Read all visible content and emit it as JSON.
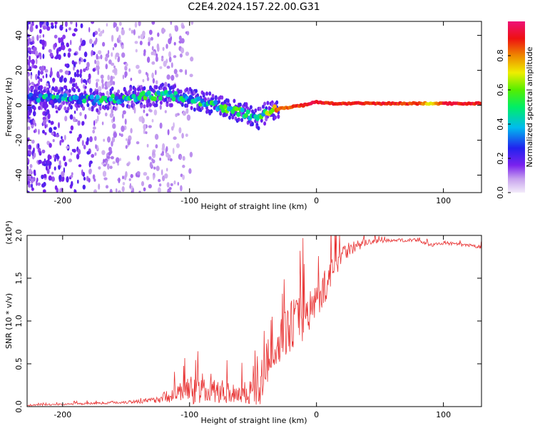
{
  "title": "C2E4.2024.157.22.00.G31",
  "chart_data": [
    {
      "type": "heatmap",
      "xlabel": "Height of straight line (km)",
      "ylabel": "Frequency (Hz)",
      "xlim": [
        -228,
        130
      ],
      "ylim": [
        -50,
        48
      ],
      "xticks": [
        -200,
        -100,
        0,
        100
      ],
      "yticks": [
        -40,
        -20,
        0,
        20,
        40
      ],
      "colorbar": {
        "label": "Normalized spectral amplitude",
        "range": [
          0,
          1
        ],
        "ticks": [
          "0.0",
          "0.2",
          "0.4",
          "0.6",
          "0.8"
        ],
        "tick_values": [
          0.0,
          0.2,
          0.4,
          0.6,
          0.8
        ]
      },
      "ridge": {
        "x": [
          -228,
          -200,
          -170,
          -140,
          -120,
          -100,
          -80,
          -60,
          -45,
          -38,
          -30,
          -20,
          -10,
          0,
          10,
          30,
          60,
          80,
          90,
          100,
          130
        ],
        "frequency": [
          4,
          4,
          3,
          5,
          6,
          4,
          0,
          -4,
          -8,
          -3,
          -2,
          -1,
          0,
          2,
          1,
          1,
          1,
          1,
          1,
          1,
          1
        ],
        "amplitude": [
          0.35,
          0.4,
          0.4,
          0.45,
          0.45,
          0.4,
          0.45,
          0.5,
          0.4,
          0.6,
          0.8,
          0.85,
          0.9,
          0.95,
          0.9,
          0.9,
          0.9,
          0.85,
          0.7,
          0.9,
          0.9
        ]
      }
    },
    {
      "type": "line",
      "xlabel": "Height of straight line (km)",
      "ylabel": "SNR (10 * v/v)",
      "ylabel_multiplier": "(x10⁴)",
      "xlim": [
        -228,
        130
      ],
      "ylim": [
        0,
        2.0
      ],
      "xticks": [
        -200,
        -100,
        0,
        100
      ],
      "yticks": [
        "0.0",
        "0.5",
        "1.0",
        "1.5",
        "2.0"
      ],
      "ytick_values": [
        0.0,
        0.5,
        1.0,
        1.5,
        2.0
      ],
      "color": "#e83232",
      "series": [
        {
          "x": [
            -228,
            -200,
            -160,
            -130,
            -110,
            -100,
            -90,
            -80,
            -60,
            -45,
            -40,
            -35,
            -30,
            -20,
            -10,
            0,
            10,
            20,
            40,
            60,
            80,
            90,
            100,
            130
          ],
          "y": [
            0.02,
            0.03,
            0.05,
            0.08,
            0.18,
            0.26,
            0.22,
            0.22,
            0.2,
            0.25,
            0.55,
            0.85,
            0.8,
            1.05,
            1.15,
            1.3,
            1.55,
            1.85,
            1.93,
            1.95,
            1.95,
            1.89,
            1.92,
            1.87
          ],
          "noise": [
            0.01,
            0.01,
            0.015,
            0.03,
            0.1,
            0.18,
            0.14,
            0.14,
            0.13,
            0.2,
            0.35,
            0.3,
            0.25,
            0.3,
            0.3,
            0.2,
            0.2,
            0.12,
            0.03,
            0.02,
            0.02,
            0.02,
            0.02,
            0.02
          ]
        }
      ]
    }
  ]
}
